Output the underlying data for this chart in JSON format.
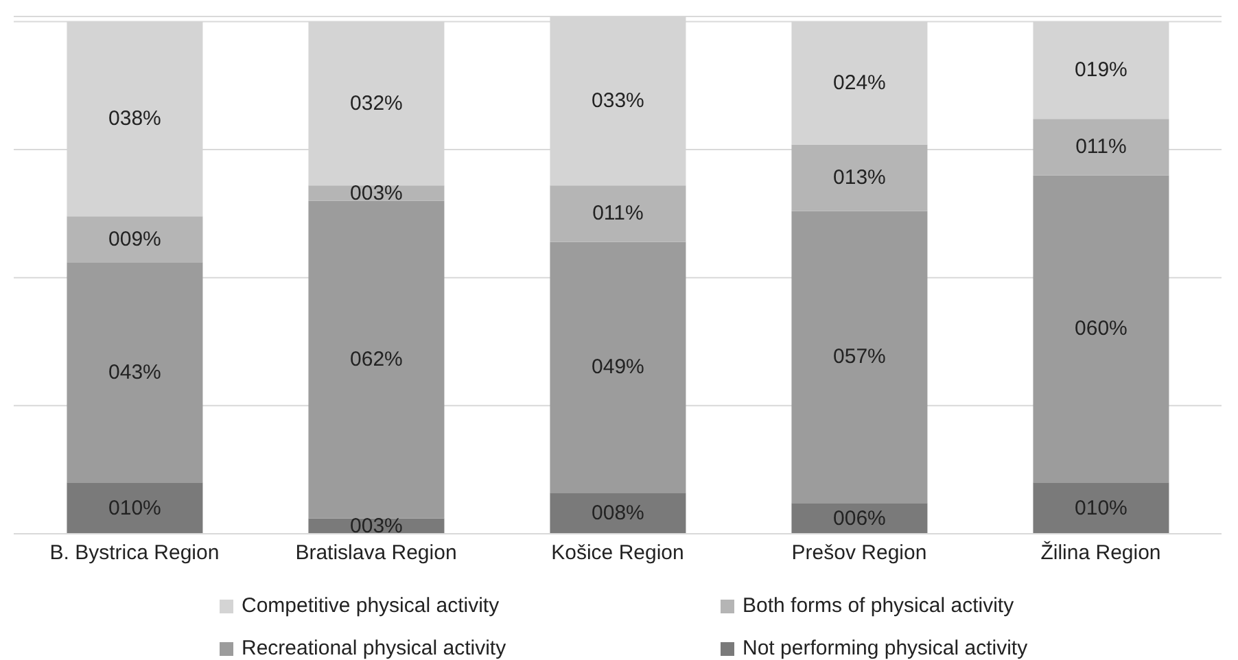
{
  "chart_data": {
    "type": "bar",
    "stacked": true,
    "categories": [
      "B. Bystrica Region",
      "Bratislava Region",
      "Košice Region",
      "Prešov Region",
      "Žilina Region"
    ],
    "series": [
      {
        "name": "Not performing physical activity",
        "color": "#7a7a7a",
        "values": [
          10,
          3,
          8,
          6,
          10
        ],
        "value_labels": [
          "010%",
          "003%",
          "008%",
          "006%",
          "010%"
        ]
      },
      {
        "name": "Recreational physical activity",
        "color": "#9c9c9c",
        "values": [
          43,
          62,
          49,
          57,
          60
        ],
        "value_labels": [
          "043%",
          "062%",
          "049%",
          "057%",
          "060%"
        ]
      },
      {
        "name": "Both forms of physical activity",
        "color": "#b5b5b5",
        "values": [
          9,
          3,
          11,
          13,
          11
        ],
        "value_labels": [
          "009%",
          "003%",
          "011%",
          "013%",
          "011%"
        ]
      },
      {
        "name": "Competitive physical activity",
        "color": "#d4d4d4",
        "values": [
          38,
          32,
          33,
          24,
          19
        ],
        "value_labels": [
          "038%",
          "032%",
          "033%",
          "024%",
          "019%"
        ]
      }
    ],
    "ylim": [
      0,
      101
    ],
    "yticks": [
      0,
      {
        "value": 25,
        "label": null
      },
      {
        "value": 50,
        "label": null
      },
      {
        "value": 75,
        "label": null
      },
      {
        "value": 100,
        "label": null
      }
    ],
    "tick_labels": "x",
    "grid": "y",
    "legend": "bottom"
  }
}
